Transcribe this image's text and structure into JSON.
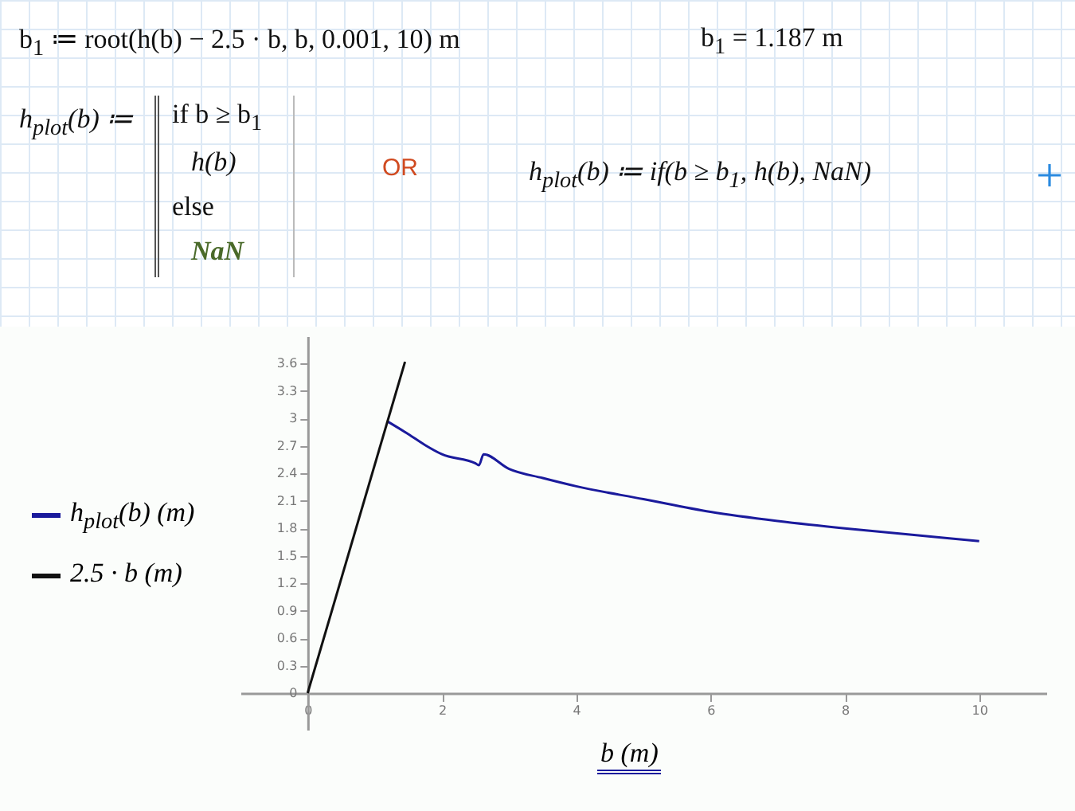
{
  "chart_data": {
    "type": "line",
    "xlabel": "b (m)",
    "annotations": [
      "b$_{1}$ ≔ root(h(b) − 2.5 · b, b, 0.001, 10) m",
      "b$_{1}$ = 1.187 m",
      "h$_{plot}$(b) ≔",
      "if b ≥ b$_{1}$",
      "h(b)",
      "else",
      "NaN",
      "OR",
      "h$_{plot}$(b) ≔ if(b ≥ b$_{1}$, h(b), NaN)"
    ],
    "series": [
      {
        "name": "h$_{plot}$(b) (m)",
        "color": "#1a1a9c",
        "x": [
          1.187,
          1.5,
          1.75,
          2,
          2.5,
          2.55,
          2.62,
          3,
          3.5,
          4,
          5,
          6,
          7,
          8,
          9,
          10
        ],
        "values": [
          2.97,
          2.83,
          2.71,
          2.61,
          2.51,
          2.49,
          2.61,
          2.45,
          2.35,
          2.26,
          2.12,
          1.98,
          1.88,
          1.8,
          1.73,
          1.66
        ]
      },
      {
        "name": "2.5 · b (m)",
        "color": "#111111",
        "x": [
          0,
          1.45
        ],
        "values": [
          0,
          3.62
        ]
      }
    ],
    "xlim": [
      -1,
      11
    ],
    "xticks": [
      0,
      2,
      4,
      6,
      8,
      10
    ],
    "ylim": [
      -0.4,
      3.9
    ],
    "yticks": [
      {
        "value": 0,
        "label": "0"
      },
      0.3,
      0.6,
      0.9,
      1.2,
      1.5,
      1.8,
      2.1,
      2.4,
      2.7,
      {
        "value": 3,
        "label": "3"
      },
      3.3,
      3.6
    ],
    "legend": "left",
    "grid": false
  }
}
